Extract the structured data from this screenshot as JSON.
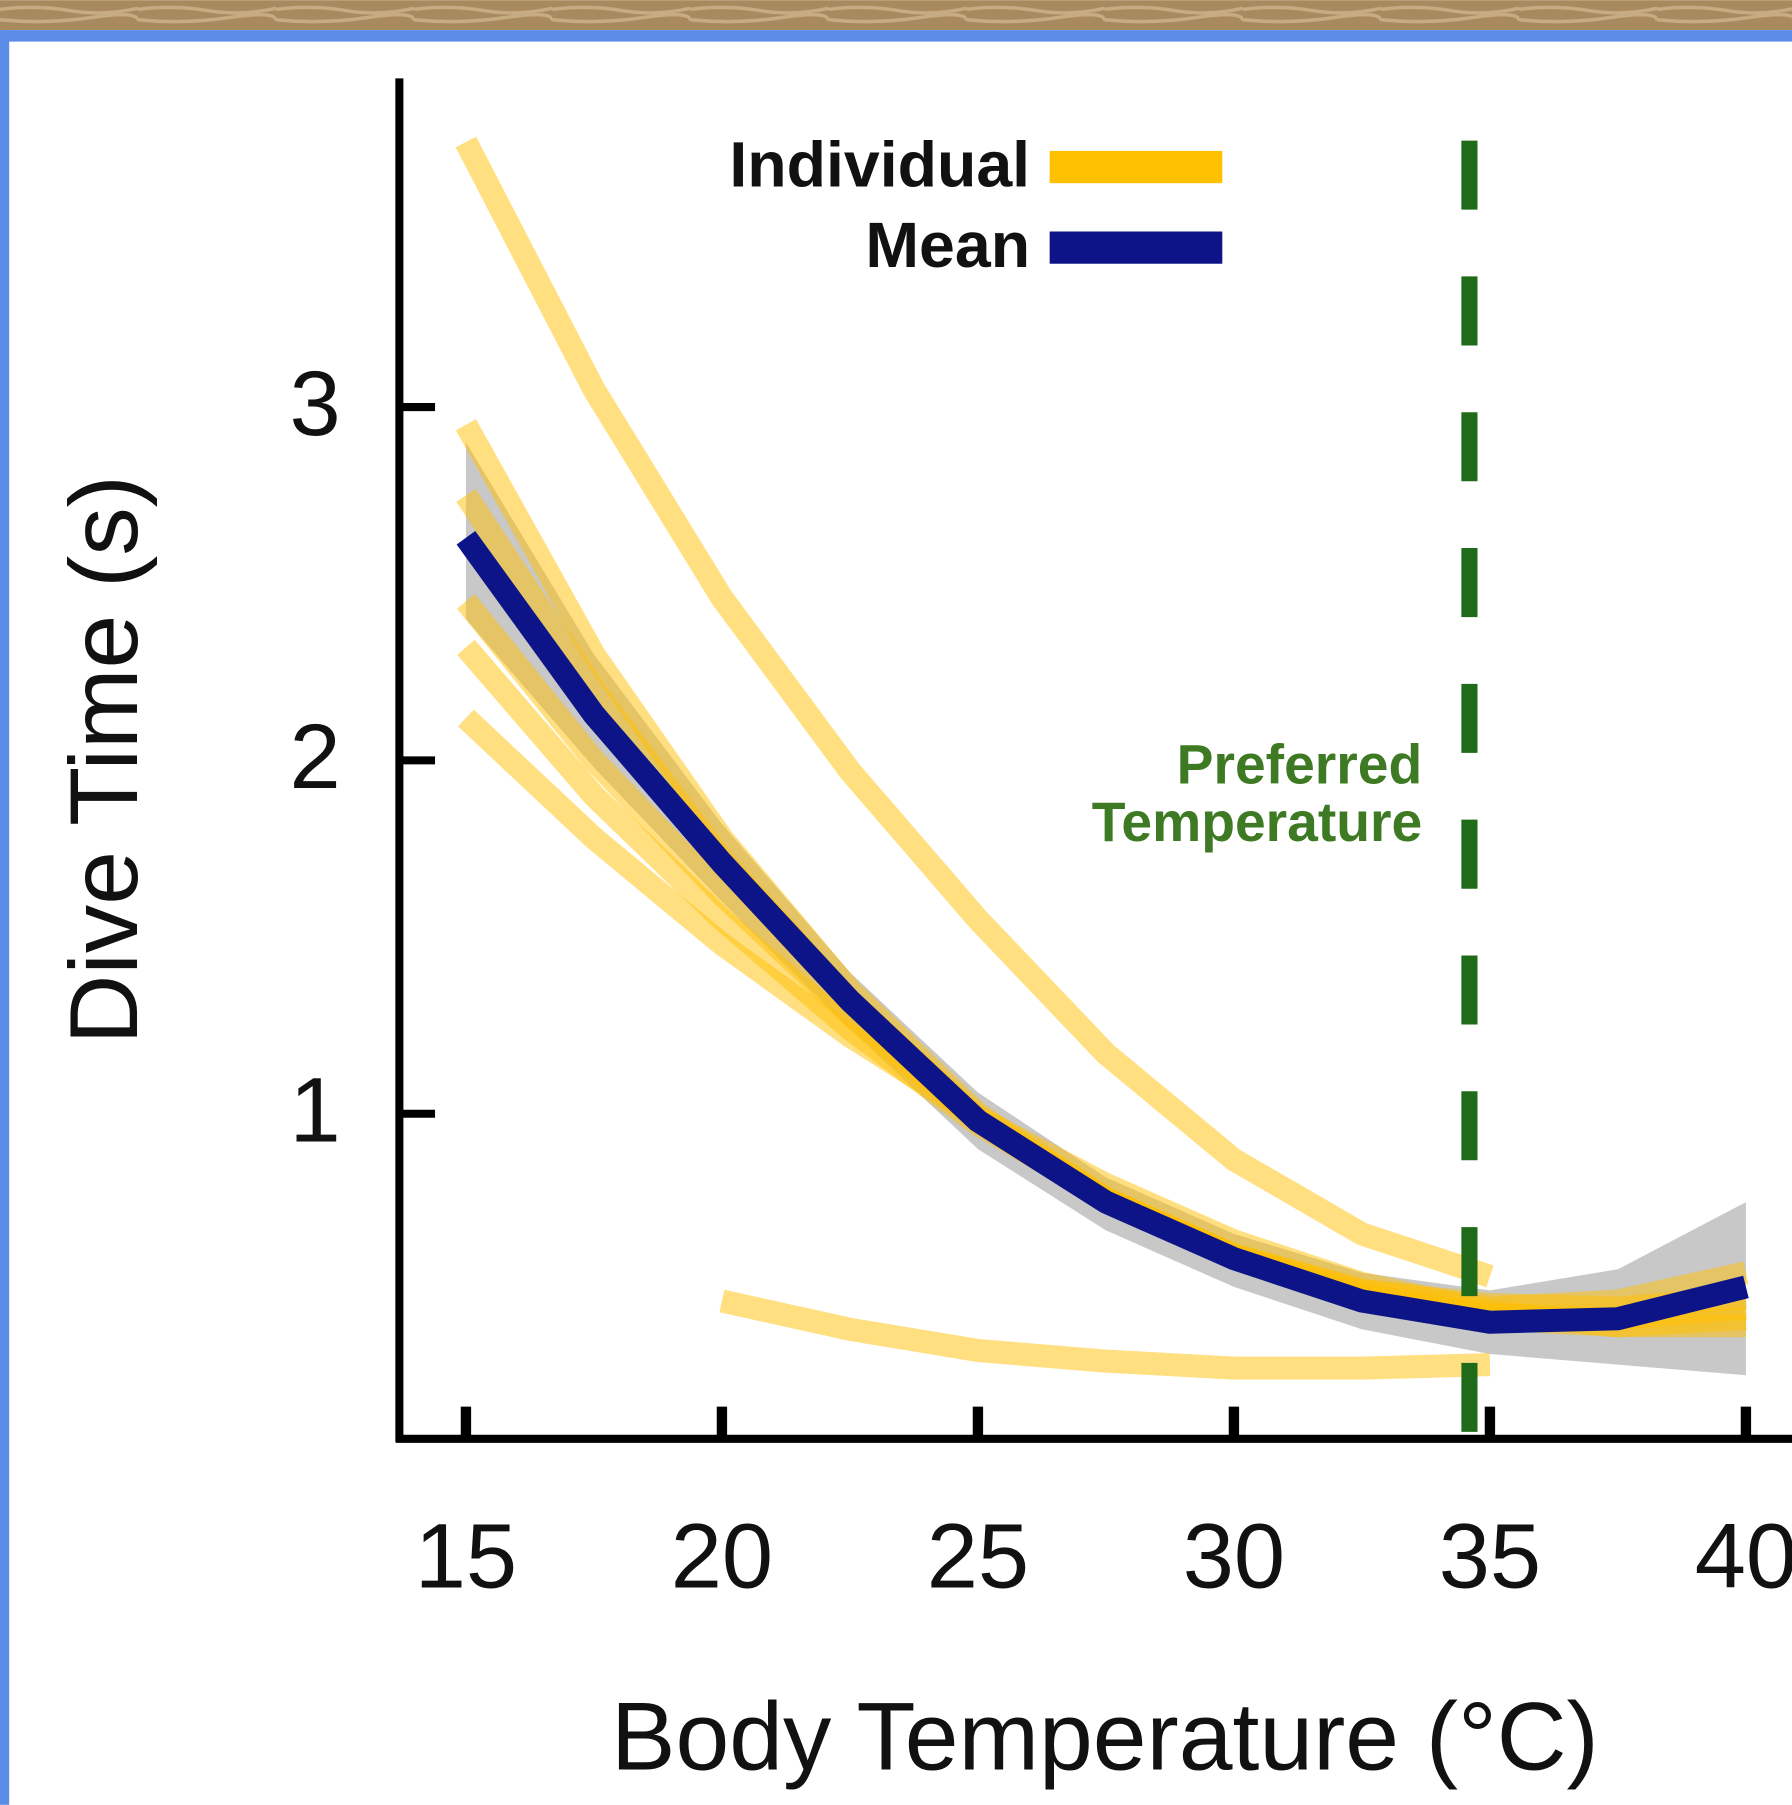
{
  "chart_data": {
    "type": "line",
    "xlabel": "Body Temperature (°C)",
    "ylabel": "Dive Time (s)",
    "x": [
      15,
      17.5,
      20,
      22.5,
      25,
      27.5,
      30,
      32.5,
      35,
      37.5,
      40
    ],
    "individual": {
      "name": "Individual",
      "color": "#ffc000",
      "curves": [
        [
          3.75,
          3.05,
          2.46,
          1.97,
          1.55,
          1.17,
          0.87,
          0.66,
          0.54,
          null,
          null
        ],
        [
          2.95,
          2.3,
          1.78,
          1.35,
          1.0,
          0.76,
          0.6,
          0.5,
          0.45,
          0.47,
          0.55
        ],
        [
          2.75,
          2.2,
          1.72,
          1.32,
          0.99,
          0.76,
          0.6,
          0.5,
          0.46,
          0.45,
          0.48
        ],
        [
          2.45,
          2.0,
          1.62,
          1.28,
          0.98,
          0.76,
          0.6,
          0.49,
          0.43,
          0.42,
          0.45
        ],
        [
          2.32,
          1.9,
          1.55,
          1.24,
          0.97,
          0.76,
          0.6,
          0.48,
          0.42,
          0.4,
          0.42
        ],
        [
          2.12,
          1.78,
          1.48,
          1.22,
          0.99,
          0.8,
          0.64,
          0.52,
          0.44,
          0.4,
          0.4
        ],
        [
          null,
          null,
          0.47,
          0.39,
          0.33,
          0.3,
          0.28,
          0.28,
          0.29,
          null,
          null
        ]
      ]
    },
    "mean": {
      "name": "Mean",
      "color": "#0d1487",
      "values": [
        2.63,
        2.13,
        1.71,
        1.32,
        0.98,
        0.75,
        0.59,
        0.47,
        0.41,
        0.42,
        0.51
      ]
    },
    "band": {
      "color": "#9a9a9a",
      "lower": [
        2.4,
        1.98,
        1.6,
        1.24,
        0.9,
        0.67,
        0.51,
        0.39,
        0.32,
        0.29,
        0.26
      ],
      "upper": [
        2.9,
        2.3,
        1.82,
        1.4,
        1.06,
        0.82,
        0.66,
        0.55,
        0.5,
        0.56,
        0.75
      ]
    },
    "vline": {
      "x": 34.6,
      "color": "#1f6b1a",
      "label": [
        "Preferred",
        "Temperature"
      ]
    },
    "xlim": [
      13.7,
      40.9
    ],
    "ylim": [
      0.08,
      3.93
    ],
    "xticks": [
      15,
      20,
      25,
      30,
      35,
      40
    ],
    "yticks": [
      1,
      2,
      3
    ],
    "legend": "top"
  }
}
